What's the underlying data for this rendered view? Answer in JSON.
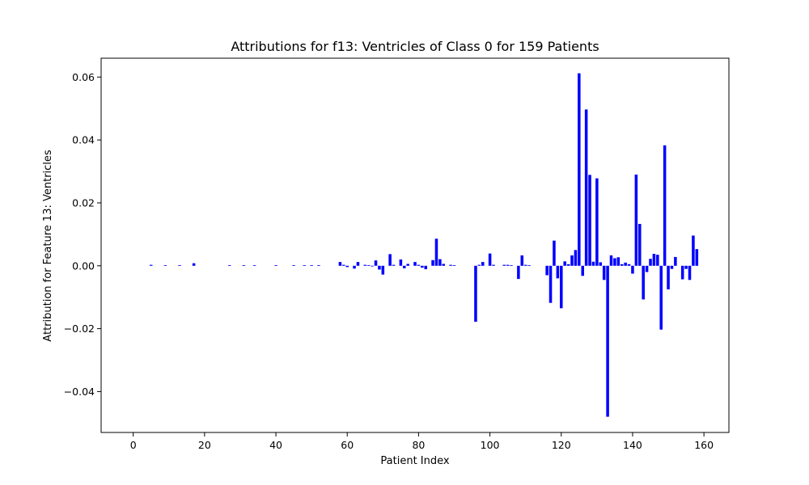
{
  "chart_data": {
    "type": "bar",
    "title": "Attributions for f13: Ventricles of Class 0 for 159 Patients",
    "xlabel": "Patient Index",
    "ylabel": "Attribution for Feature 13: Ventricles",
    "xlim": [
      -9,
      167
    ],
    "ylim": [
      -0.053,
      0.066
    ],
    "xticks": [
      0,
      20,
      40,
      60,
      80,
      100,
      120,
      140,
      160
    ],
    "yticks": [
      -0.04,
      -0.02,
      0.0,
      0.02,
      0.04,
      0.06
    ],
    "ytick_labels": [
      "−0.04",
      "−0.02",
      "0.00",
      "0.02",
      "0.04",
      "0.06"
    ],
    "bar_color": "#0000ff",
    "grid": false,
    "x": [
      0,
      1,
      2,
      3,
      4,
      5,
      6,
      7,
      8,
      9,
      10,
      11,
      12,
      13,
      14,
      15,
      16,
      17,
      18,
      19,
      20,
      21,
      22,
      23,
      24,
      25,
      26,
      27,
      28,
      29,
      30,
      31,
      32,
      33,
      34,
      35,
      36,
      37,
      38,
      39,
      40,
      41,
      42,
      43,
      44,
      45,
      46,
      47,
      48,
      49,
      50,
      51,
      52,
      53,
      54,
      55,
      56,
      57,
      58,
      59,
      60,
      61,
      62,
      63,
      64,
      65,
      66,
      67,
      68,
      69,
      70,
      71,
      72,
      73,
      74,
      75,
      76,
      77,
      78,
      79,
      80,
      81,
      82,
      83,
      84,
      85,
      86,
      87,
      88,
      89,
      90,
      91,
      92,
      93,
      94,
      95,
      96,
      97,
      98,
      99,
      100,
      101,
      102,
      103,
      104,
      105,
      106,
      107,
      108,
      109,
      110,
      111,
      112,
      113,
      114,
      115,
      116,
      117,
      118,
      119,
      120,
      121,
      122,
      123,
      124,
      125,
      126,
      127,
      128,
      129,
      130,
      131,
      132,
      133,
      134,
      135,
      136,
      137,
      138,
      139,
      140,
      141,
      142,
      143,
      144,
      145,
      146,
      147,
      148,
      149,
      150,
      151,
      152,
      153,
      154,
      155,
      156,
      157,
      158
    ],
    "values": [
      0,
      0,
      0,
      0,
      0,
      0.0003,
      0,
      0,
      0,
      0.0002,
      0,
      0,
      0,
      0.0002,
      0,
      0,
      0,
      0.0008,
      0,
      0,
      0,
      0,
      0,
      0,
      0,
      0,
      0,
      0.0002,
      0,
      0,
      0,
      0.0002,
      0,
      0,
      0.0002,
      0,
      0,
      0,
      0,
      0,
      0.0002,
      0,
      0,
      0,
      0,
      0.0002,
      0,
      0,
      0.0002,
      0,
      0.0002,
      0,
      0.0002,
      0,
      0,
      0,
      0,
      0,
      0.0012,
      0.0003,
      -0.0004,
      0,
      -0.0009,
      0.0012,
      0,
      0.0003,
      0.0002,
      -0.0002,
      0.0017,
      -0.0012,
      -0.0028,
      0,
      0.0037,
      0.0003,
      0,
      0.002,
      -0.0008,
      0.0006,
      0,
      0.0012,
      0.0003,
      -0.0006,
      -0.0011,
      0,
      0.0018,
      0.0086,
      0.0021,
      0.0006,
      0,
      0.0003,
      0.0002,
      0,
      0,
      0,
      0,
      0,
      -0.0178,
      0.0003,
      0.0012,
      0,
      0.0039,
      0.0003,
      0,
      0,
      0.0003,
      0.0003,
      0.0002,
      0,
      -0.0042,
      0.0033,
      0.0003,
      0.0002,
      0,
      0,
      0,
      0,
      -0.003,
      -0.0118,
      0.008,
      -0.004,
      -0.0135,
      0.0014,
      0.0005,
      0.0033,
      0.005,
      0.0612,
      -0.0032,
      0.0497,
      0.0289,
      0.0013,
      0.0278,
      0.0011,
      -0.0045,
      -0.048,
      0.0033,
      0.0024,
      0.0027,
      0.0005,
      0.001,
      0.0005,
      -0.0025,
      0.029,
      0.0133,
      -0.0107,
      -0.002,
      0.0022,
      0.0038,
      0.0035,
      -0.0203,
      0.0383,
      -0.0075,
      -0.001,
      0.0028,
      0,
      -0.0043,
      -0.001,
      -0.0045,
      0.0096,
      0.0053
    ]
  }
}
